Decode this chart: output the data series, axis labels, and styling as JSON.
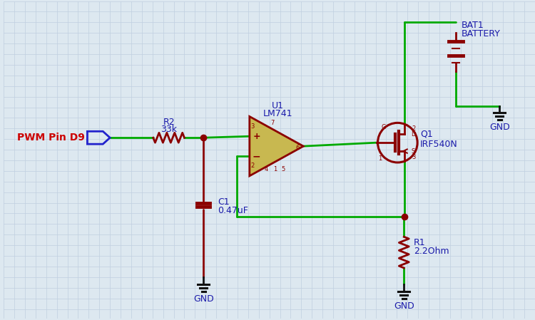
{
  "bg_color": "#dde8f0",
  "grid_color": "#c0cfe0",
  "wire_green": "#00aa00",
  "comp_dark": "#8B0000",
  "opamp_fill": "#c8b850",
  "text_blue": "#1a1aaa",
  "text_red": "#cc0000",
  "label_pwm": "PWM Pin D9",
  "label_r2": "R2",
  "label_r2v": "33k",
  "label_c1": "C1",
  "label_c1v": "0.47uF",
  "label_u1": "U1",
  "label_u1v": "LM741",
  "label_q1": "Q1",
  "label_q1v": "IRF540N",
  "label_r1": "R1",
  "label_r1v": "2.2Ohm",
  "label_bat": "BAT1",
  "label_batv": "BATTERY",
  "label_gnd": "GND"
}
